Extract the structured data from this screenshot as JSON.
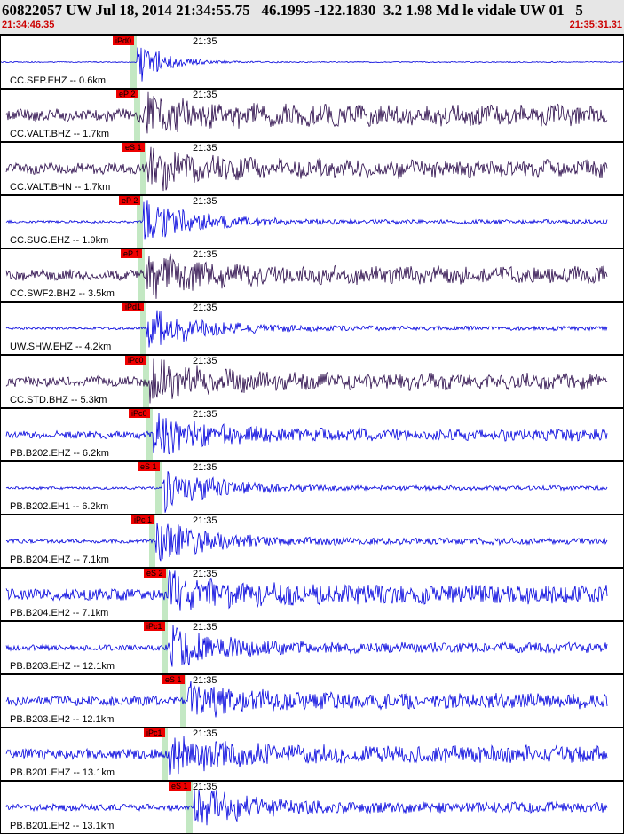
{
  "header": {
    "title": "60822057 UW Jul 18, 2014 21:34:55.75   46.1995 -122.1830  3.2 1.98 Md le vidale UW 01   5",
    "start_time": "21:34:46.35",
    "end_time": "21:35:31.31"
  },
  "colors": {
    "blue": "#0000dd",
    "dark": "#2a0a4a",
    "pick": "#ee0000",
    "pickline": "#b8e4b8"
  },
  "traces": [
    {
      "station": "CC.SEP.EHZ -- 0.6km",
      "pick": "iPd0",
      "time": "21:35",
      "color": "blue",
      "amp": 0.05,
      "decay": true,
      "pickpos": 0.22
    },
    {
      "station": "CC.VALT.BHZ -- 1.7km",
      "pick": "eP 2",
      "time": "21:35",
      "color": "dark",
      "amp": 0.35,
      "decay": false,
      "pickpos": 0.225
    },
    {
      "station": "CC.VALT.BHN -- 1.7km",
      "pick": "eS 1",
      "time": "21:35",
      "color": "dark",
      "amp": 0.3,
      "decay": false,
      "pickpos": 0.235
    },
    {
      "station": "CC.SUG.EHZ -- 1.9km",
      "pick": "eP 2",
      "time": "21:35",
      "color": "blue",
      "amp": 0.08,
      "decay": false,
      "pickpos": 0.23
    },
    {
      "station": "CC.SWF2.BHZ -- 3.5km",
      "pick": "eP 1",
      "time": "21:35",
      "color": "dark",
      "amp": 0.3,
      "decay": false,
      "pickpos": 0.232
    },
    {
      "station": "UW.SHW.EHZ -- 4.2km",
      "pick": "iPd1",
      "time": "21:35",
      "color": "blue",
      "amp": 0.08,
      "decay": false,
      "pickpos": 0.235
    },
    {
      "station": "CC.STD.BHZ -- 5.3km",
      "pick": "iPc0",
      "time": "21:35",
      "color": "dark",
      "amp": 0.28,
      "decay": false,
      "pickpos": 0.24
    },
    {
      "station": "PB.B202.EHZ -- 6.2km",
      "pick": "iPc0",
      "time": "21:35",
      "color": "blue",
      "amp": 0.22,
      "decay": false,
      "pickpos": 0.245
    },
    {
      "station": "PB.B202.EH1 -- 6.2km",
      "pick": "eS 1",
      "time": "21:35",
      "color": "blue",
      "amp": 0.08,
      "decay": false,
      "pickpos": 0.26
    },
    {
      "station": "PB.B204.EHZ -- 7.1km",
      "pick": "iPc 1",
      "time": "21:35",
      "color": "blue",
      "amp": 0.12,
      "decay": false,
      "pickpos": 0.25
    },
    {
      "station": "PB.B204.EH2 -- 7.1km",
      "pick": "eS 2",
      "time": "21:35",
      "color": "blue",
      "amp": 0.35,
      "decay": false,
      "pickpos": 0.27
    },
    {
      "station": "PB.B203.EHZ -- 12.1km",
      "pick": "iPc1",
      "time": "21:35",
      "color": "blue",
      "amp": 0.18,
      "decay": false,
      "pickpos": 0.27
    },
    {
      "station": "PB.B203.EH2 -- 12.1km",
      "pick": "eS 1",
      "time": "21:35",
      "color": "blue",
      "amp": 0.28,
      "decay": false,
      "pickpos": 0.3
    },
    {
      "station": "PB.B201.EHZ -- 13.1km",
      "pick": "iPc1",
      "time": "21:35",
      "color": "blue",
      "amp": 0.32,
      "decay": false,
      "pickpos": 0.27
    },
    {
      "station": "PB.B201.EH2 -- 13.1km",
      "pick": "eS 1",
      "time": "21:35",
      "color": "blue",
      "amp": 0.2,
      "decay": false,
      "pickpos": 0.31
    }
  ]
}
